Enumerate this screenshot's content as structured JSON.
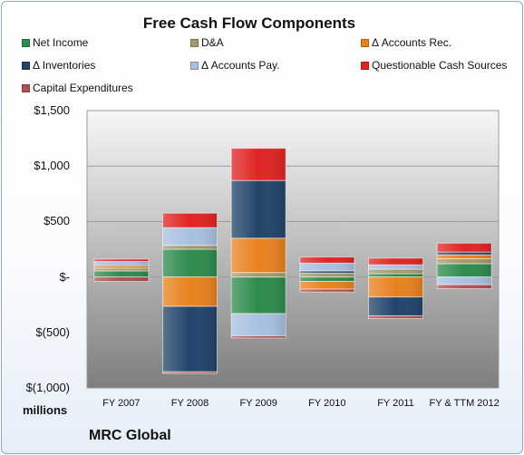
{
  "chart_data": {
    "type": "bar",
    "stacked": true,
    "title": "Free Cash Flow Components",
    "units_label": "millions",
    "brand": "MRC Global",
    "categories": [
      "FY 2007",
      "FY 2008",
      "FY 2009",
      "FY 2010",
      "FY 2011",
      "FY & TTM 2012"
    ],
    "ylim": [
      -1000,
      1500
    ],
    "yticks": [
      -1000,
      -500,
      0,
      500,
      1000,
      1500
    ],
    "ytick_labels": [
      "$(1,000)",
      "$(500)",
      "$-",
      "$500",
      "$1,000",
      "$1,500"
    ],
    "grid": true,
    "legend_position": "top",
    "series": [
      {
        "name": "Net Income",
        "color": "#2e8b4e",
        "values": [
          55,
          250,
          -330,
          -40,
          30,
          120
        ]
      },
      {
        "name": "D&A",
        "color": "#a39a6c",
        "values": [
          25,
          35,
          40,
          35,
          40,
          45
        ]
      },
      {
        "name": "Δ Accounts Rec.",
        "color": "#e8821e",
        "values": [
          20,
          -265,
          310,
          -70,
          -180,
          35
        ]
      },
      {
        "name": "Δ Inventories",
        "color": "#22446b",
        "values": [
          10,
          -590,
          520,
          20,
          -170,
          25
        ]
      },
      {
        "name": "Δ Accounts Pay.",
        "color": "#a8c0e0",
        "values": [
          30,
          160,
          -200,
          70,
          40,
          -70
        ]
      },
      {
        "name": "Questionable Cash Sources",
        "color": "#e02424",
        "values": [
          20,
          130,
          290,
          55,
          60,
          80
        ]
      },
      {
        "name": "Capital Expenditures",
        "color": "#b05050",
        "values": [
          -40,
          -15,
          -20,
          -25,
          -25,
          -35
        ]
      }
    ]
  }
}
